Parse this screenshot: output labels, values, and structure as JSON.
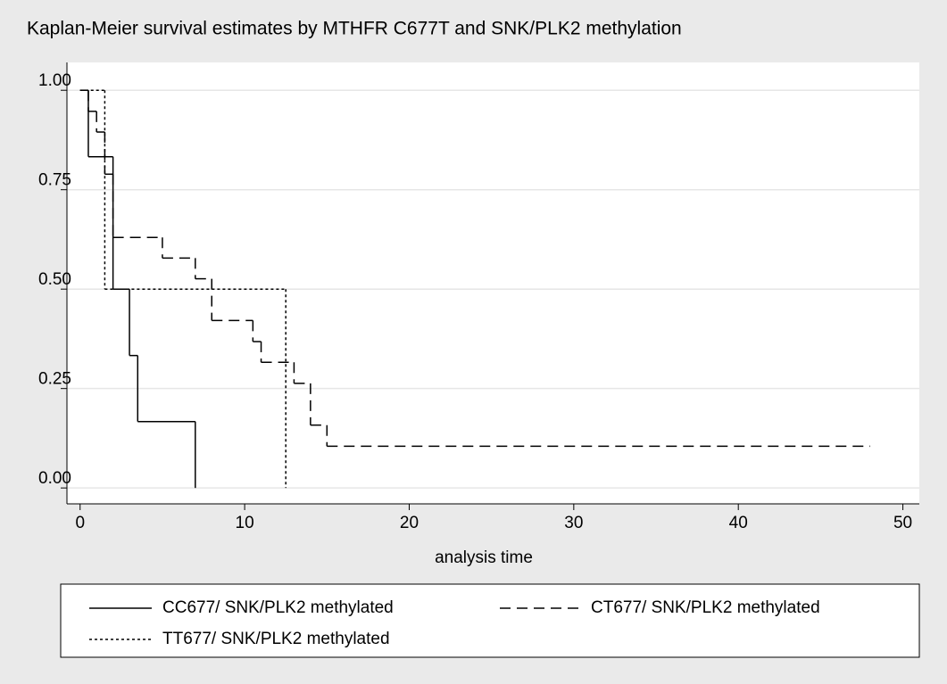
{
  "chart_data": {
    "type": "step",
    "title": "Kaplan-Meier survival estimates by MTHFR C677T and SNK/PLK2 methylation",
    "x_label": "analysis time",
    "xlim": [
      -0.8,
      51
    ],
    "ylim": [
      -0.04,
      1.07
    ],
    "xticks": [
      0,
      10,
      20,
      30,
      40,
      50
    ],
    "yticks": [
      {
        "value": 0,
        "label": "0.00"
      },
      {
        "value": 0.25,
        "label": "0.25"
      },
      {
        "value": 0.5,
        "label": "0.50"
      },
      {
        "value": 0.75,
        "label": "0.75"
      },
      {
        "value": 1,
        "label": "1.00"
      }
    ],
    "grid": true,
    "legend": "bottom",
    "series": [
      {
        "name": "CC677/ SNK/PLK2 methylated",
        "color": "#000000",
        "dash": "solid",
        "x": [
          0,
          0.5,
          2,
          3,
          3.5,
          7
        ],
        "values": [
          1,
          0.833,
          0.5,
          0.333,
          0.167,
          0
        ]
      },
      {
        "name": "CT677/ SNK/PLK2 methylated",
        "color": "#000000",
        "dash": "dashed",
        "x": [
          0,
          0.5,
          1,
          1.5,
          2,
          5,
          7,
          8,
          10.5,
          11,
          13,
          14,
          15,
          48
        ],
        "values": [
          1,
          0.947,
          0.895,
          0.789,
          0.63,
          0.578,
          0.526,
          0.421,
          0.368,
          0.316,
          0.263,
          0.158,
          0.105,
          0.105
        ]
      },
      {
        "name": "TT677/ SNK/PLK2 methylated",
        "color": "#000000",
        "dash": "dotted",
        "x": [
          0,
          1.5,
          12.5
        ],
        "values": [
          1,
          0.5,
          0
        ]
      }
    ]
  }
}
